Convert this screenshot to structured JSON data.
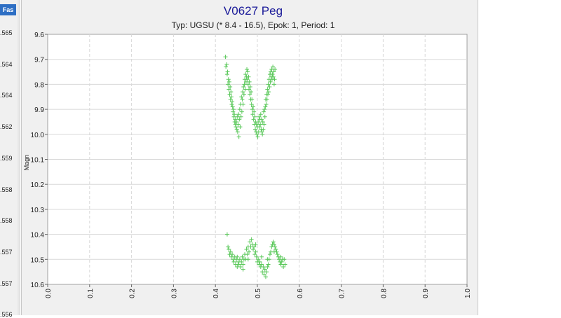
{
  "left_panel": {
    "tab_label": "Fas",
    "phase_values": [
      ".565",
      ".564",
      ".564",
      ".562",
      ".559",
      ".558",
      ".558",
      ".557",
      ".557",
      ".556"
    ]
  },
  "chart_data": {
    "type": "scatter",
    "title": "V0627 Peg",
    "subtitle": "Typ: UGSU (* 8.4 - 16.5), Epok: 1, Period: 1",
    "xlabel": "",
    "ylabel": "Magn",
    "xlim": [
      0,
      1
    ],
    "ylim": [
      9.6,
      10.6
    ],
    "y_inverted": true,
    "x_ticks": [
      "0.0",
      "0.1",
      "0.2",
      "0.3",
      "0.4",
      "0.5",
      "0.6",
      "0.7",
      "0.8",
      "0.9",
      "1.0"
    ],
    "y_ticks": [
      "9.6",
      "9.7",
      "9.8",
      "9.9",
      "10.0",
      "10.1",
      "10.2",
      "10.3",
      "10.4",
      "10.5",
      "10.6"
    ],
    "grid": true,
    "marker": "+",
    "marker_color": "#5ac85a",
    "points": [
      [
        0.424,
        9.69
      ],
      [
        0.425,
        9.73
      ],
      [
        0.427,
        9.72
      ],
      [
        0.428,
        9.76
      ],
      [
        0.429,
        9.75
      ],
      [
        0.43,
        9.8
      ],
      [
        0.431,
        9.78
      ],
      [
        0.432,
        9.82
      ],
      [
        0.433,
        9.79
      ],
      [
        0.434,
        9.84
      ],
      [
        0.435,
        9.81
      ],
      [
        0.436,
        9.86
      ],
      [
        0.437,
        9.83
      ],
      [
        0.438,
        9.85
      ],
      [
        0.439,
        9.88
      ],
      [
        0.44,
        9.87
      ],
      [
        0.441,
        9.89
      ],
      [
        0.442,
        9.91
      ],
      [
        0.443,
        9.9
      ],
      [
        0.444,
        9.93
      ],
      [
        0.445,
        9.92
      ],
      [
        0.446,
        9.95
      ],
      [
        0.447,
        9.94
      ],
      [
        0.448,
        9.96
      ],
      [
        0.449,
        9.97
      ],
      [
        0.45,
        9.95
      ],
      [
        0.451,
        9.98
      ],
      [
        0.452,
        9.93
      ],
      [
        0.453,
        9.99
      ],
      [
        0.454,
        9.96
      ],
      [
        0.455,
        9.92
      ],
      [
        0.456,
        10.01
      ],
      [
        0.457,
        9.94
      ],
      [
        0.458,
        9.9
      ],
      [
        0.459,
        9.97
      ],
      [
        0.46,
        9.88
      ],
      [
        0.461,
        9.93
      ],
      [
        0.462,
        9.85
      ],
      [
        0.463,
        9.91
      ],
      [
        0.464,
        9.86
      ],
      [
        0.465,
        9.83
      ],
      [
        0.466,
        9.88
      ],
      [
        0.467,
        9.81
      ],
      [
        0.468,
        9.84
      ],
      [
        0.469,
        9.8
      ],
      [
        0.47,
        9.78
      ],
      [
        0.471,
        9.82
      ],
      [
        0.472,
        9.76
      ],
      [
        0.473,
        9.79
      ],
      [
        0.474,
        9.77
      ],
      [
        0.475,
        9.74
      ],
      [
        0.476,
        9.78
      ],
      [
        0.477,
        9.75
      ],
      [
        0.478,
        9.8
      ],
      [
        0.479,
        9.77
      ],
      [
        0.48,
        9.82
      ],
      [
        0.481,
        9.79
      ],
      [
        0.482,
        9.84
      ],
      [
        0.483,
        9.81
      ],
      [
        0.484,
        9.86
      ],
      [
        0.485,
        9.83
      ],
      [
        0.486,
        9.88
      ],
      [
        0.487,
        9.86
      ],
      [
        0.488,
        9.9
      ],
      [
        0.489,
        9.92
      ],
      [
        0.49,
        9.89
      ],
      [
        0.491,
        9.94
      ],
      [
        0.492,
        9.91
      ],
      [
        0.493,
        9.96
      ],
      [
        0.494,
        9.93
      ],
      [
        0.495,
        9.98
      ],
      [
        0.496,
        9.95
      ],
      [
        0.497,
        9.99
      ],
      [
        0.498,
        9.96
      ],
      [
        0.499,
        10.0
      ],
      [
        0.5,
        9.97
      ],
      [
        0.501,
        10.01
      ],
      [
        0.502,
        9.95
      ],
      [
        0.503,
        9.99
      ],
      [
        0.504,
        9.93
      ],
      [
        0.505,
        9.97
      ],
      [
        0.506,
        9.94
      ],
      [
        0.507,
        9.96
      ],
      [
        0.508,
        9.92
      ],
      [
        0.509,
        9.98
      ],
      [
        0.51,
        9.94
      ],
      [
        0.511,
        9.99
      ],
      [
        0.512,
        10.0
      ],
      [
        0.513,
        9.95
      ],
      [
        0.514,
        9.98
      ],
      [
        0.515,
        9.91
      ],
      [
        0.516,
        9.96
      ],
      [
        0.517,
        9.9
      ],
      [
        0.518,
        9.93
      ],
      [
        0.519,
        9.89
      ],
      [
        0.52,
        9.86
      ],
      [
        0.521,
        9.88
      ],
      [
        0.522,
        9.84
      ],
      [
        0.523,
        9.86
      ],
      [
        0.524,
        9.82
      ],
      [
        0.525,
        9.84
      ],
      [
        0.526,
        9.8
      ],
      [
        0.527,
        9.83
      ],
      [
        0.528,
        9.78
      ],
      [
        0.529,
        9.81
      ],
      [
        0.53,
        9.76
      ],
      [
        0.531,
        9.79
      ],
      [
        0.532,
        9.75
      ],
      [
        0.533,
        9.77
      ],
      [
        0.534,
        9.74
      ],
      [
        0.535,
        9.78
      ],
      [
        0.536,
        9.76
      ],
      [
        0.537,
        9.73
      ],
      [
        0.538,
        9.77
      ],
      [
        0.539,
        9.75
      ],
      [
        0.54,
        9.8
      ],
      [
        0.541,
        9.78
      ],
      [
        0.542,
        9.74
      ],
      [
        0.428,
        10.4
      ],
      [
        0.43,
        10.45
      ],
      [
        0.432,
        10.46
      ],
      [
        0.434,
        10.48
      ],
      [
        0.436,
        10.47
      ],
      [
        0.438,
        10.49
      ],
      [
        0.44,
        10.48
      ],
      [
        0.442,
        10.5
      ],
      [
        0.444,
        10.51
      ],
      [
        0.446,
        10.49
      ],
      [
        0.448,
        10.52
      ],
      [
        0.45,
        10.5
      ],
      [
        0.452,
        10.53
      ],
      [
        0.454,
        10.51
      ],
      [
        0.456,
        10.52
      ],
      [
        0.458,
        10.5
      ],
      [
        0.46,
        10.53
      ],
      [
        0.462,
        10.51
      ],
      [
        0.464,
        10.49
      ],
      [
        0.466,
        10.52
      ],
      [
        0.468,
        10.5
      ],
      [
        0.47,
        10.48
      ],
      [
        0.472,
        10.5
      ],
      [
        0.474,
        10.46
      ],
      [
        0.476,
        10.48
      ],
      [
        0.478,
        10.45
      ],
      [
        0.48,
        10.47
      ],
      [
        0.482,
        10.43
      ],
      [
        0.484,
        10.45
      ],
      [
        0.486,
        10.42
      ],
      [
        0.488,
        10.44
      ],
      [
        0.49,
        10.46
      ],
      [
        0.492,
        10.45
      ],
      [
        0.494,
        10.48
      ],
      [
        0.496,
        10.47
      ],
      [
        0.498,
        10.49
      ],
      [
        0.5,
        10.51
      ],
      [
        0.502,
        10.5
      ],
      [
        0.504,
        10.52
      ],
      [
        0.506,
        10.51
      ],
      [
        0.508,
        10.53
      ],
      [
        0.51,
        10.52
      ],
      [
        0.512,
        10.55
      ],
      [
        0.514,
        10.53
      ],
      [
        0.516,
        10.56
      ],
      [
        0.518,
        10.54
      ],
      [
        0.52,
        10.57
      ],
      [
        0.522,
        10.55
      ],
      [
        0.524,
        10.53
      ],
      [
        0.526,
        10.52
      ],
      [
        0.528,
        10.5
      ],
      [
        0.53,
        10.48
      ],
      [
        0.532,
        10.47
      ],
      [
        0.534,
        10.45
      ],
      [
        0.536,
        10.44
      ],
      [
        0.538,
        10.43
      ],
      [
        0.54,
        10.44
      ],
      [
        0.542,
        10.45
      ],
      [
        0.544,
        10.46
      ],
      [
        0.546,
        10.47
      ],
      [
        0.548,
        10.48
      ],
      [
        0.55,
        10.49
      ],
      [
        0.552,
        10.5
      ],
      [
        0.554,
        10.51
      ],
      [
        0.556,
        10.52
      ],
      [
        0.558,
        10.51
      ],
      [
        0.56,
        10.5
      ],
      [
        0.562,
        10.53
      ],
      [
        0.564,
        10.5
      ],
      [
        0.566,
        10.52
      ],
      [
        0.452,
        10.49
      ],
      [
        0.466,
        10.54
      ],
      [
        0.478,
        10.5
      ],
      [
        0.496,
        10.44
      ],
      [
        0.51,
        10.49
      ],
      [
        0.524,
        10.5
      ],
      [
        0.54,
        10.47
      ],
      [
        0.556,
        10.49
      ]
    ]
  }
}
